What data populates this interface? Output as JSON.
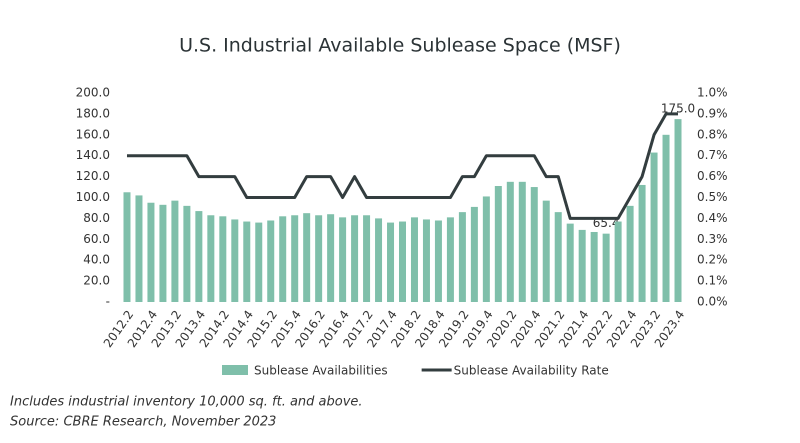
{
  "chart_data": {
    "type": "bar_line",
    "title": "U.S. Industrial Available Sublease Space (MSF)",
    "categories": [
      "2012.2",
      null,
      "2012.4",
      null,
      "2013.2",
      null,
      "2013.4",
      null,
      "2014.2",
      null,
      "2014.4",
      null,
      "2015.2",
      null,
      "2015.4",
      null,
      "2016.2",
      null,
      "2016.4",
      null,
      "2017.2",
      null,
      "2017.4",
      null,
      "2018.2",
      null,
      "2018.4",
      null,
      "2019.2",
      null,
      "2019.4",
      null,
      "2020.2",
      null,
      "2020.4",
      null,
      "2021.2",
      null,
      "2021.4",
      null,
      "2022.2",
      null,
      "2022.4",
      null,
      "2023.2",
      null,
      "2023.4"
    ],
    "series": [
      {
        "name": "Sublease Availabilities",
        "type": "bar",
        "color": "#7fbfaa",
        "values": [
          105,
          102,
          95,
          93,
          97,
          92,
          87,
          83,
          82,
          79,
          77,
          76,
          78,
          82,
          83,
          85,
          83,
          84,
          81,
          83,
          83,
          80,
          76,
          77,
          81,
          79,
          78,
          81,
          86,
          91,
          101,
          111,
          115,
          115,
          110,
          97,
          86,
          75,
          69,
          67,
          65.4,
          77,
          92,
          112,
          143,
          160,
          175
        ],
        "value_labels": [
          null,
          null,
          null,
          null,
          null,
          null,
          null,
          null,
          null,
          null,
          null,
          null,
          null,
          null,
          null,
          null,
          null,
          null,
          null,
          null,
          null,
          null,
          null,
          null,
          null,
          null,
          null,
          null,
          null,
          null,
          null,
          null,
          null,
          null,
          null,
          null,
          null,
          null,
          null,
          null,
          "65.4",
          null,
          null,
          null,
          null,
          null,
          "175.0"
        ]
      },
      {
        "name": "Sublease Availability Rate",
        "type": "line",
        "color": "#333d3f",
        "axis": "y2",
        "values": [
          0.7,
          0.7,
          0.7,
          0.7,
          0.7,
          0.7,
          0.6,
          0.6,
          0.6,
          0.6,
          0.5,
          0.5,
          0.5,
          0.5,
          0.5,
          0.6,
          0.6,
          0.6,
          0.5,
          0.6,
          0.5,
          0.5,
          0.5,
          0.5,
          0.5,
          0.5,
          0.5,
          0.5,
          0.6,
          0.6,
          0.7,
          0.7,
          0.7,
          0.7,
          0.7,
          0.6,
          0.6,
          0.4,
          0.4,
          0.4,
          0.4,
          0.4,
          0.5,
          0.6,
          0.8,
          0.9,
          0.9
        ]
      }
    ],
    "ylim": [
      0,
      200
    ],
    "yticks": [
      {
        "value": 0,
        "label": "-"
      },
      {
        "value": 20,
        "label": "20.0"
      },
      {
        "value": 40,
        "label": "40.0"
      },
      {
        "value": 60,
        "label": "60.0"
      },
      {
        "value": 80,
        "label": "80.0"
      },
      {
        "value": 100,
        "label": "100.0"
      },
      {
        "value": 120,
        "label": "120.0"
      },
      {
        "value": 140,
        "label": "140.0"
      },
      {
        "value": 160,
        "label": "160.0"
      },
      {
        "value": 180,
        "label": "180.0"
      },
      {
        "value": 200,
        "label": "200.0"
      }
    ],
    "y2lim": [
      0,
      1
    ],
    "y2ticks": [
      {
        "value": 0,
        "label": "0.0%"
      },
      {
        "value": 0.1,
        "label": "0.1%"
      },
      {
        "value": 0.2,
        "label": "0.2%"
      },
      {
        "value": 0.3,
        "label": "0.3%"
      },
      {
        "value": 0.4,
        "label": "0.4%"
      },
      {
        "value": 0.5,
        "label": "0.5%"
      },
      {
        "value": 0.6,
        "label": "0.6%"
      },
      {
        "value": 0.7,
        "label": "0.7%"
      },
      {
        "value": 0.8,
        "label": "0.8%"
      },
      {
        "value": 0.9,
        "label": "0.9%"
      },
      {
        "value": 1,
        "label": "1.0%"
      }
    ],
    "legend": "bottom",
    "annotations": [
      "Includes industrial inventory 10,000 sq. ft. and above.",
      "Source: CBRE Research, November 2023"
    ]
  }
}
